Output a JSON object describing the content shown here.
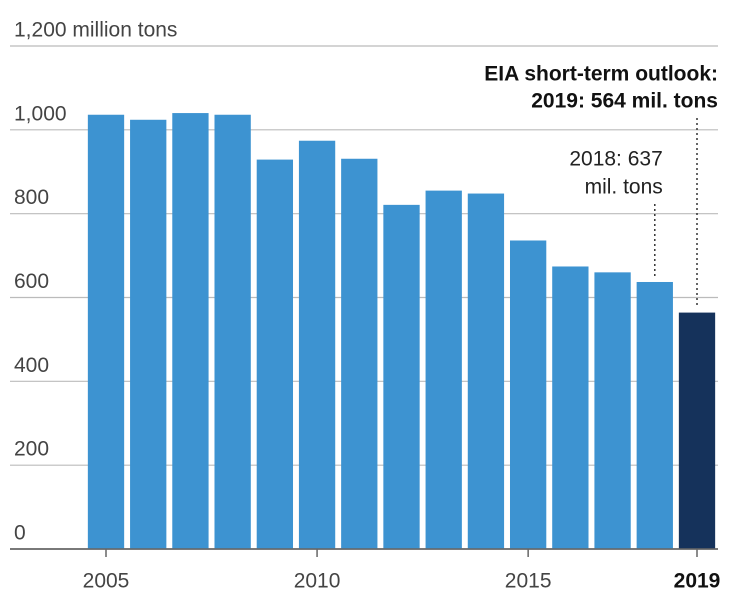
{
  "chart_data": {
    "type": "bar",
    "x": [
      2005,
      2006,
      2007,
      2008,
      2009,
      2010,
      2011,
      2012,
      2013,
      2014,
      2015,
      2016,
      2017,
      2018,
      2019
    ],
    "series": [
      {
        "values": [
          1036,
          1024,
          1040,
          1036,
          929,
          974,
          931,
          821,
          855,
          848,
          736,
          674,
          660,
          637,
          564
        ],
        "colors": [
          "#3d93d1",
          "#3d93d1",
          "#3d93d1",
          "#3d93d1",
          "#3d93d1",
          "#3d93d1",
          "#3d93d1",
          "#3d93d1",
          "#3d93d1",
          "#3d93d1",
          "#3d93d1",
          "#3d93d1",
          "#3d93d1",
          "#3d93d1",
          "#15325b"
        ]
      }
    ],
    "ylim": [
      0,
      1200
    ],
    "yticks": [
      0,
      200,
      400,
      600,
      800,
      {
        "value": 1000,
        "label": "1,000"
      },
      {
        "value": 1200,
        "label": "1,200 million tons"
      }
    ],
    "xticks": [
      2005,
      2010,
      2015,
      2019
    ],
    "grid": true,
    "annotations": [
      {
        "lines": [
          "EIA short-term outlook:",
          "2019: 564 mil. tons"
        ],
        "x": 2019
      },
      {
        "lines": [
          "2018: 637",
          "mil. tons"
        ],
        "x": 2018
      }
    ]
  }
}
